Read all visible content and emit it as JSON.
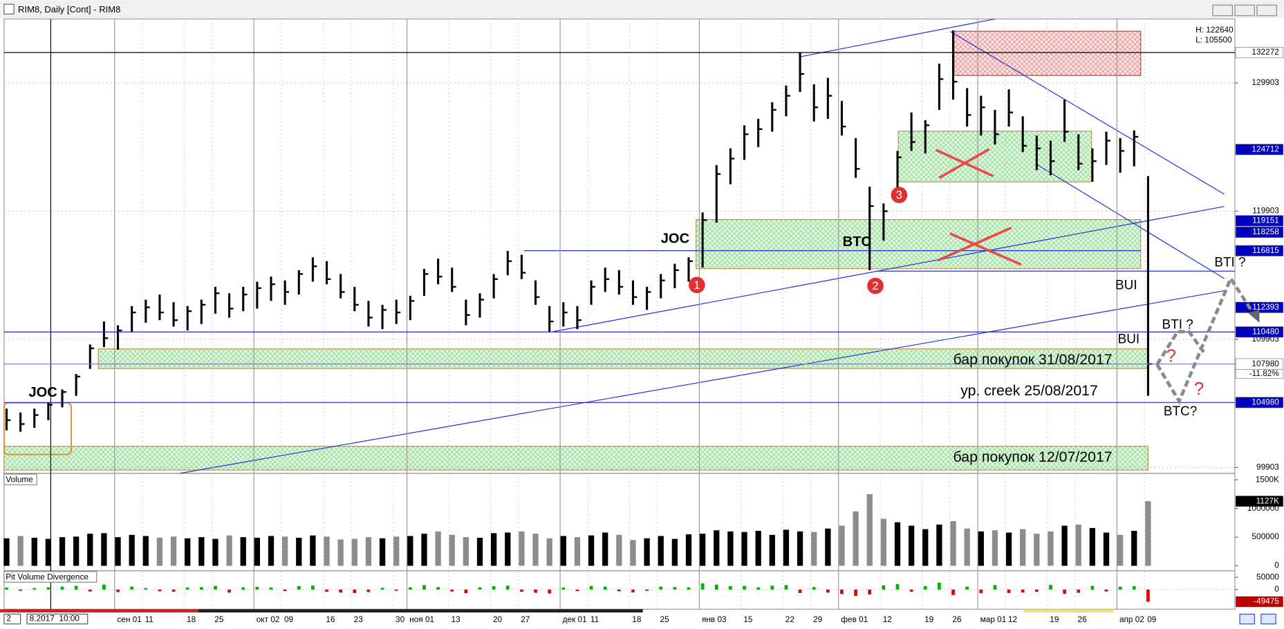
{
  "window_title": "RIM8, Daily [Cont] - RIM8",
  "status": {
    "left": "2",
    "time": "8.2017  10:00"
  },
  "chart_data": [
    {
      "type": "ohlc",
      "color": "#000000",
      "grid": true,
      "ylim": [
        99456,
        134890
      ],
      "yticks": [
        99903,
        109903,
        119903,
        129903
      ],
      "info": [
        "H: 122640",
        "L: 105500"
      ],
      "categories": [
        null,
        null,
        null,
        null,
        null,
        null,
        null,
        null,
        "сен 01",
        null,
        "11",
        null,
        null,
        "18",
        null,
        "25",
        null,
        null,
        "окт 02",
        null,
        "09",
        null,
        null,
        "16",
        null,
        "23",
        null,
        null,
        "30",
        "ноя 01",
        null,
        null,
        "13",
        null,
        null,
        "20",
        null,
        "27",
        null,
        null,
        "дек 01",
        null,
        "11",
        null,
        null,
        "18",
        null,
        "25",
        null,
        null,
        "янв 03",
        null,
        null,
        "15",
        null,
        null,
        "22",
        null,
        "29",
        null,
        "фев 01",
        null,
        null,
        "12",
        null,
        null,
        "19",
        null,
        "26",
        null,
        "мар 01",
        null,
        "12",
        null,
        null,
        "19",
        null,
        "26",
        null,
        null,
        "апр 02",
        null,
        "09"
      ],
      "high": [
        104500,
        104200,
        104500,
        105000,
        106000,
        107200,
        109500,
        111300,
        111000,
        112500,
        113000,
        113400,
        112800,
        112500,
        113000,
        114000,
        113500,
        114000,
        114400,
        114800,
        114500,
        115300,
        116300,
        116000,
        115000,
        114000,
        112900,
        112600,
        113000,
        113300,
        115400,
        116200,
        115500,
        113000,
        113500,
        115000,
        116800,
        116500,
        114500,
        112500,
        112800,
        112500,
        114500,
        115500,
        115300,
        114500,
        114000,
        115000,
        115800,
        116300,
        119800,
        123500,
        124800,
        126600,
        127100,
        128400,
        129700,
        132300,
        129800,
        130300,
        128500,
        125600,
        121800,
        120500,
        124600,
        127600,
        127000,
        131400,
        134000,
        129500,
        128900,
        127800,
        129400,
        127300,
        125800,
        125400,
        128600,
        125900,
        124800,
        126100,
        125600,
        126200,
        122640
      ],
      "low": [
        102800,
        102700,
        103000,
        103600,
        104600,
        105500,
        107600,
        109300,
        109100,
        110500,
        111200,
        111400,
        110900,
        110600,
        111100,
        111900,
        111600,
        112100,
        112300,
        112900,
        112600,
        113400,
        114400,
        114200,
        113100,
        112100,
        110900,
        110700,
        111100,
        111400,
        113300,
        114200,
        113600,
        111000,
        111600,
        113100,
        114900,
        114600,
        112600,
        110500,
        110900,
        110700,
        112600,
        113600,
        113400,
        112600,
        112200,
        113100,
        113900,
        114400,
        115500,
        119000,
        122000,
        123900,
        124900,
        126100,
        127300,
        129200,
        126900,
        127100,
        125800,
        122500,
        115300,
        117600,
        121300,
        124600,
        124400,
        127800,
        128600,
        126500,
        125800,
        125100,
        126500,
        124500,
        123100,
        122700,
        125300,
        123100,
        122200,
        123500,
        122900,
        123400,
        105500
      ],
      "close": [
        103600,
        103300,
        104000,
        104800,
        105800,
        107000,
        109200,
        110000,
        110600,
        112000,
        112400,
        112000,
        111400,
        112100,
        112600,
        113500,
        112300,
        113400,
        113900,
        114200,
        113600,
        115000,
        115600,
        114600,
        113600,
        112600,
        111600,
        112200,
        112000,
        112900,
        115000,
        114800,
        114000,
        111800,
        113000,
        114600,
        116000,
        115100,
        113200,
        111300,
        112000,
        111400,
        114000,
        114600,
        114000,
        113200,
        113600,
        114500,
        115300,
        116000,
        119200,
        122800,
        124000,
        125900,
        126300,
        127800,
        128900,
        130600,
        128000,
        128900,
        126500,
        123200,
        120300,
        119900,
        124100,
        125300,
        126600,
        130200,
        130000,
        127400,
        128000,
        125900,
        127600,
        125000,
        124800,
        123800,
        126100,
        123600,
        123800,
        125400,
        124600,
        125700,
        107980
      ],
      "price_tags": [
        {
          "value": 132272,
          "color": "#ffffff",
          "line": "#000000"
        },
        {
          "value": 124712,
          "color": "#0000c0"
        },
        {
          "value": 119151,
          "color": "#0000c0"
        },
        {
          "value": 118258,
          "color": "#0000c0"
        },
        {
          "value": 116815,
          "color": "#0000c0"
        },
        {
          "value": 112393,
          "color": "#0000c0"
        },
        {
          "value": 110480,
          "color": "#0000c0",
          "line": "#2020d0"
        },
        {
          "value": 107980,
          "color": "#ffffff",
          "line": "#8080c8",
          "change": "-11.82%"
        },
        {
          "value": 104980,
          "color": "#0000c0",
          "line": "#2020d0"
        }
      ],
      "annotations": [
        "JOC",
        "JOC",
        "BTC",
        "BUI",
        "BUI",
        "BTI ?",
        "BTI ?",
        "BTC?",
        "бар покупок 31/08/2017",
        "ур. creek 25/08/2017",
        "бар покупок 12/07/2017",
        "1",
        "2",
        "3",
        "?",
        "?"
      ]
    },
    {
      "type": "volume",
      "title": "Volume",
      "up_color": "#000000",
      "down_color": "#8c8c8c",
      "ylim": [
        0,
        1614000
      ],
      "yticks": [
        {
          "value": 1500000,
          "label": "1500K"
        },
        1000000,
        500000,
        0
      ],
      "last_tag": {
        "value": 1127000,
        "label": "1127K",
        "color": "#000000"
      },
      "values": [
        480000,
        520000,
        490000,
        470000,
        500000,
        510000,
        560000,
        570000,
        500000,
        540000,
        520000,
        490000,
        510000,
        480000,
        500000,
        470000,
        530000,
        500000,
        490000,
        520000,
        510000,
        490000,
        530000,
        510000,
        460000,
        470000,
        500000,
        480000,
        510000,
        520000,
        560000,
        600000,
        540000,
        500000,
        490000,
        570000,
        580000,
        600000,
        560000,
        480000,
        520000,
        500000,
        530000,
        580000,
        540000,
        450000,
        480000,
        520000,
        470000,
        550000,
        560000,
        620000,
        600000,
        590000,
        610000,
        540000,
        630000,
        600000,
        590000,
        650000,
        700000,
        950000,
        1250000,
        820000,
        760000,
        700000,
        640000,
        720000,
        780000,
        650000,
        600000,
        620000,
        580000,
        640000,
        560000,
        600000,
        700000,
        720000,
        660000,
        580000,
        540000,
        610000,
        1127000
      ]
    },
    {
      "type": "divergence",
      "title": "Pit Volume Divergence",
      "up_color": "#00b000",
      "down_color": "#e00000",
      "ylim": [
        -80000,
        73333
      ],
      "yticks": [
        50000,
        0
      ],
      "last_tag": {
        "value": -49475,
        "color": "#c00000"
      },
      "values": [
        8000,
        -5000,
        6000,
        9000,
        12000,
        15000,
        -8000,
        20000,
        -10000,
        12000,
        6000,
        -7000,
        -9000,
        8000,
        10000,
        15000,
        -12000,
        9000,
        11000,
        8000,
        -6000,
        14000,
        16000,
        -9000,
        -12000,
        -14000,
        -10000,
        7000,
        -5000,
        9000,
        18000,
        10000,
        -8000,
        -15000,
        9000,
        14000,
        16000,
        -9000,
        -13000,
        -16000,
        8000,
        -6000,
        15000,
        12000,
        -7000,
        -11000,
        -5000,
        12000,
        10000,
        9000,
        25000,
        20000,
        14000,
        15000,
        9000,
        16000,
        18000,
        -14000,
        10000,
        -12000,
        -18000,
        -26000,
        -20000,
        17000,
        22000,
        -9000,
        14000,
        28000,
        -22000,
        12000,
        -15000,
        18000,
        -14000,
        -12000,
        -9000,
        19000,
        -17000,
        -13000,
        15000,
        -8000,
        12000,
        14000,
        -49475
      ]
    }
  ]
}
